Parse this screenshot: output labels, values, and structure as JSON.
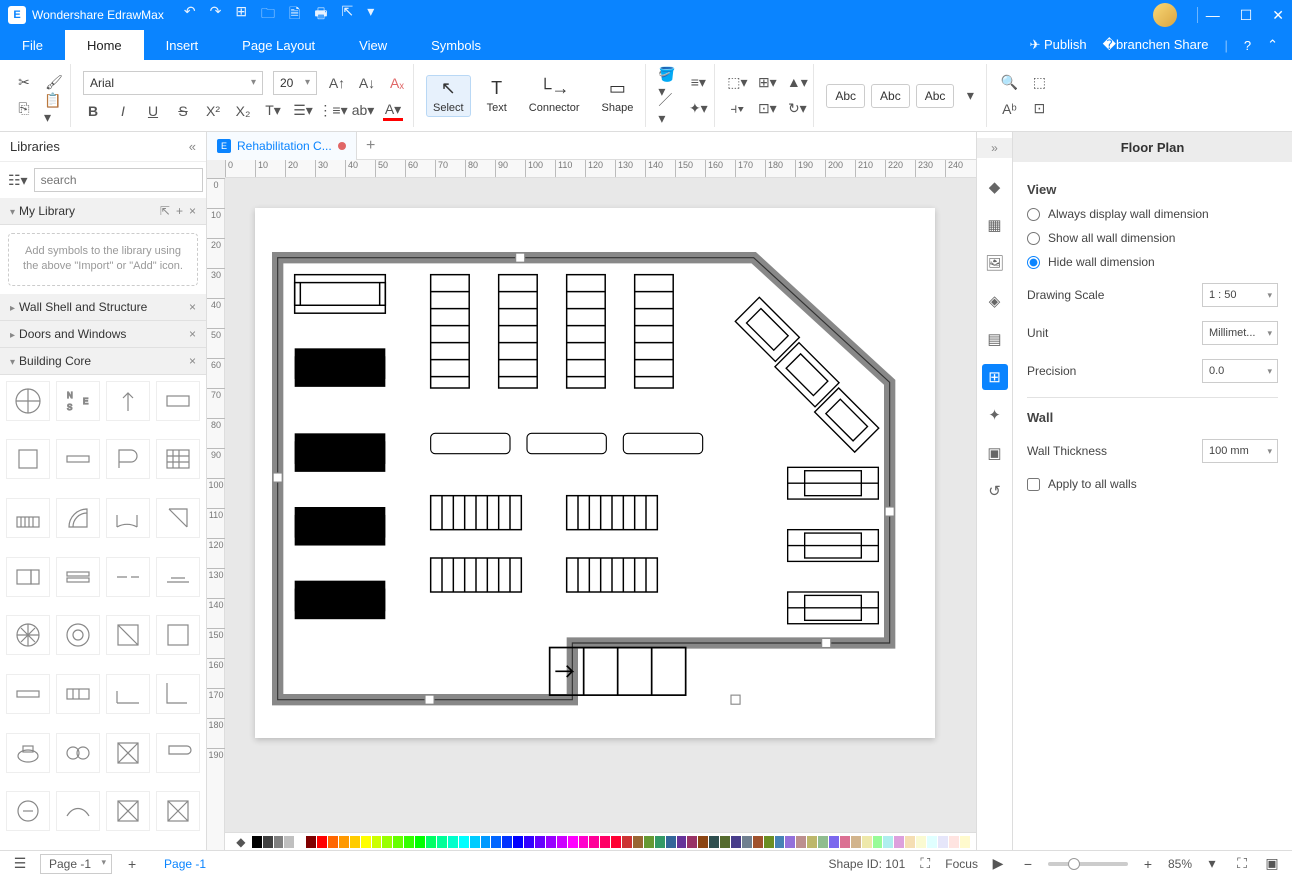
{
  "app": {
    "title": "Wondershare EdrawMax"
  },
  "menus": {
    "file": "File",
    "home": "Home",
    "insert": "Insert",
    "pagelayout": "Page Layout",
    "view": "View",
    "symbols": "Symbols",
    "publish": "Publish",
    "share": "Share"
  },
  "ribbon": {
    "font": "Arial",
    "size": "20",
    "select": "Select",
    "text": "Text",
    "connector": "Connector",
    "shape": "Shape",
    "abc": "Abc"
  },
  "left": {
    "title": "Libraries",
    "search_placeholder": "search",
    "mylibrary": "My Library",
    "hint": "Add symbols to the library using the above \"Import\" or \"Add\" icon.",
    "sections": [
      "Wall Shell and Structure",
      "Doors and Windows",
      "Building Core"
    ]
  },
  "filetab": "Rehabilitation C...",
  "proppanel": {
    "title": "Floor Plan",
    "view": "View",
    "opt1": "Always display wall dimension",
    "opt2": "Show all wall dimension",
    "opt3": "Hide wall dimension",
    "drawingscale": "Drawing Scale",
    "drawingscale_v": "1 : 50",
    "unit": "Unit",
    "unit_v": "Millimet...",
    "precision": "Precision",
    "precision_v": "0.0",
    "wall": "Wall",
    "wallthickness": "Wall Thickness",
    "wallthickness_v": "100 mm",
    "applyall": "Apply to all walls"
  },
  "status": {
    "page": "Page -1",
    "pagelabel": "Page -1",
    "shapeid": "Shape ID: 101",
    "focus": "Focus",
    "zoom": "85%"
  },
  "ruler": {
    "step": 10,
    "start": 0,
    "count": 25,
    "vcount": 20
  },
  "colors": [
    "#000000",
    "#404040",
    "#808080",
    "#c0c0c0",
    "#ffffff",
    "#800000",
    "#ff0000",
    "#ff6600",
    "#ff9900",
    "#ffcc00",
    "#ffff00",
    "#ccff00",
    "#99ff00",
    "#66ff00",
    "#33ff00",
    "#00ff00",
    "#00ff66",
    "#00ff99",
    "#00ffcc",
    "#00ffff",
    "#00ccff",
    "#0099ff",
    "#0066ff",
    "#0033ff",
    "#0000ff",
    "#3300ff",
    "#6600ff",
    "#9900ff",
    "#cc00ff",
    "#ff00ff",
    "#ff00cc",
    "#ff0099",
    "#ff0066",
    "#ff0033",
    "#cc3333",
    "#996633",
    "#669933",
    "#339966",
    "#336699",
    "#663399",
    "#993366",
    "#8b4513",
    "#2f4f4f",
    "#556b2f",
    "#483d8b",
    "#708090",
    "#a0522d",
    "#6b8e23",
    "#4682b4",
    "#9370db",
    "#bc8f8f",
    "#bdb76b",
    "#8fbc8f",
    "#7b68ee",
    "#db7093",
    "#d2b48c",
    "#eee8aa",
    "#98fb98",
    "#afeeee",
    "#dda0dd",
    "#f5deb3",
    "#fafad2",
    "#e0ffff",
    "#e6e6fa",
    "#ffe4e1",
    "#fffacd"
  ]
}
